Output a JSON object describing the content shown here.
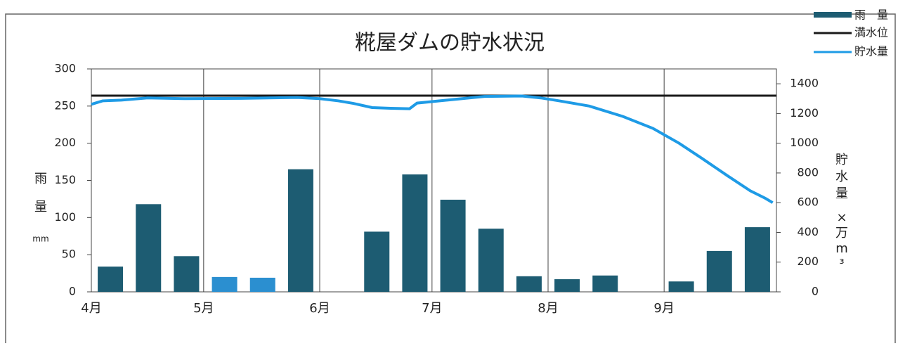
{
  "chart_data": {
    "type": "bar-line",
    "title": "糀屋ダムの貯水状況",
    "ylabel": "雨量",
    "ylabel_unit": "mm",
    "y2label": "貯水量",
    "y2label_unit": "×万m³",
    "categories": [
      null,
      null,
      null,
      null,
      null,
      null,
      null,
      null,
      null,
      null,
      null,
      null,
      null,
      null,
      null,
      null,
      null,
      null
    ],
    "bar_series": {
      "name": "雨　量",
      "color": "#1d5c72",
      "colors": [
        "#1d5c72",
        "#1d5c72",
        "#1d5c72",
        "#2b8fd0",
        "#2b8fd0",
        "#1d5c72",
        "#1d5c72",
        "#1d5c72",
        "#1d5c72",
        "#1d5c72",
        "#1d5c72",
        "#1d5c72",
        "#1d5c72",
        "#1d5c72",
        "#1d5c72",
        "#1d5c72",
        "#1d5c72",
        "#1d5c72"
      ],
      "values": [
        34,
        118,
        48,
        20,
        19,
        165,
        0,
        81,
        158,
        124,
        85,
        21,
        17,
        22,
        0,
        14,
        55,
        87
      ]
    },
    "full_level": {
      "name": "満水位",
      "color": "#1a1a1a",
      "value": 1320,
      "axis": "y2"
    },
    "storage": {
      "name": "貯水量",
      "color": "#1e9be6",
      "axis": "y2",
      "x": [
        0,
        3,
        8,
        15,
        25,
        40,
        55,
        61,
        66,
        70,
        75,
        80,
        85,
        87,
        95,
        105,
        115,
        120,
        125,
        133,
        142,
        150,
        157,
        163,
        170,
        176,
        180,
        182
      ],
      "values": [
        1262,
        1285,
        1290,
        1305,
        1300,
        1302,
        1308,
        1300,
        1285,
        1268,
        1240,
        1235,
        1232,
        1270,
        1290,
        1315,
        1318,
        1305,
        1285,
        1250,
        1180,
        1100,
        1000,
        900,
        780,
        680,
        630,
        600
      ]
    },
    "xlim": [
      0,
      183
    ],
    "xticks": [
      {
        "value": 0,
        "label": "4月"
      },
      {
        "value": 30,
        "label": "5月"
      },
      {
        "value": 61,
        "label": "6月"
      },
      {
        "value": 91,
        "label": "7月"
      },
      {
        "value": 122,
        "label": "8月"
      },
      {
        "value": 153,
        "label": "9月"
      }
    ],
    "ylim": [
      0,
      300
    ],
    "yticks": [
      0,
      50,
      100,
      150,
      200,
      250,
      300
    ],
    "y2lim": [
      0,
      1500
    ],
    "y2ticks": [
      0,
      200,
      400,
      600,
      800,
      1000,
      1200,
      1400
    ]
  }
}
